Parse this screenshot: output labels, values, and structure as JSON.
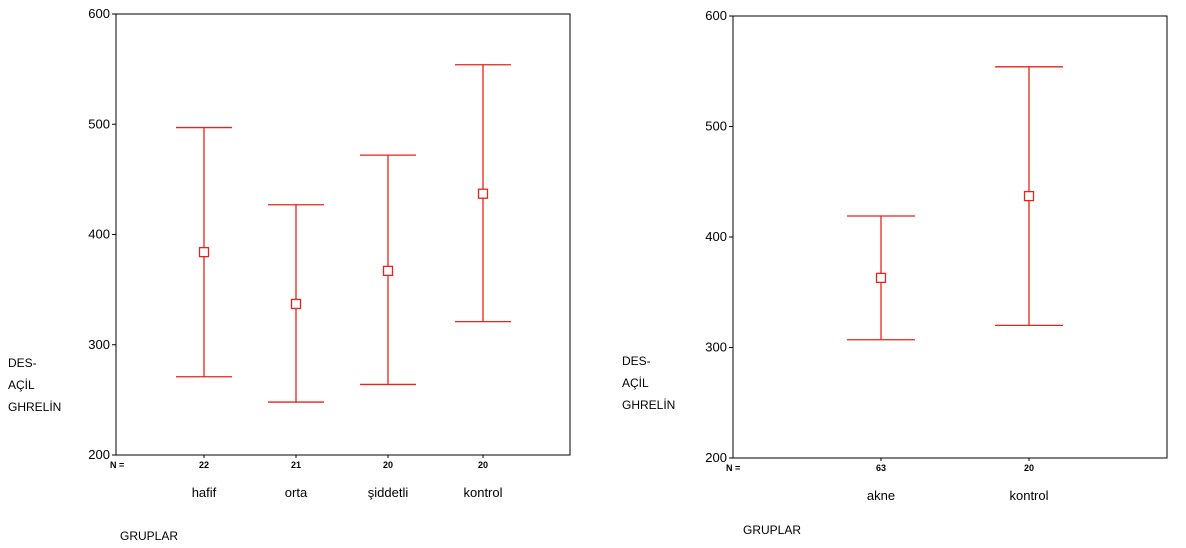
{
  "chart_data": [
    {
      "type": "errorbar",
      "ylabel": [
        "DES-",
        "AÇİL",
        "GHRELİN"
      ],
      "xlabel": "GRUPLAR",
      "ylim": [
        200,
        600
      ],
      "yticks": [
        200,
        300,
        400,
        500,
        600
      ],
      "n_label": "N =",
      "categories": [
        "hafif",
        "orta",
        "şiddetli",
        "kontrol"
      ],
      "n": [
        "22",
        "21",
        "20",
        "20"
      ],
      "mean": [
        384,
        337,
        367,
        437
      ],
      "lower": [
        271,
        248,
        264,
        321
      ],
      "upper": [
        497,
        427,
        472,
        554
      ],
      "color": "#e8221c"
    },
    {
      "type": "errorbar",
      "ylabel": [
        "DES-",
        "AÇİL",
        "GHRELİN"
      ],
      "xlabel": "GRUPLAR",
      "ylim": [
        200,
        600
      ],
      "yticks": [
        200,
        300,
        400,
        500,
        600
      ],
      "n_label": "N =",
      "categories": [
        "akne",
        "kontrol"
      ],
      "n": [
        "63",
        "20"
      ],
      "mean": [
        363,
        437
      ],
      "lower": [
        307,
        320
      ],
      "upper": [
        419,
        554
      ],
      "color": "#e8221c"
    }
  ]
}
